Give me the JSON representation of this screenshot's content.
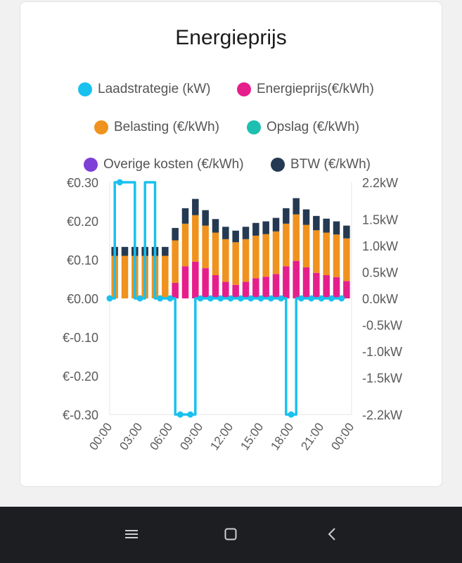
{
  "colors": {
    "laadstrategie": "#19c1ef",
    "energieprijs": "#e61e8c",
    "belasting": "#f0921e",
    "opslag": "#1dbfb0",
    "overige": "#7e3fd6",
    "btw": "#243a52"
  },
  "chart_data": {
    "type": "bar",
    "title": "Energieprijs",
    "legend": [
      {
        "key": "laadstrategie",
        "label": "Laadstrategie (kW)"
      },
      {
        "key": "energieprijs",
        "label": "Energieprijs(€/kWh)"
      },
      {
        "key": "belasting",
        "label": "Belasting (€/kWh)"
      },
      {
        "key": "opslag",
        "label": "Opslag (€/kWh)"
      },
      {
        "key": "overige",
        "label": "Overige kosten (€/kWh)"
      },
      {
        "key": "btw",
        "label": "BTW (€/kWh)"
      }
    ],
    "hours": [
      0,
      1,
      2,
      3,
      4,
      5,
      6,
      7,
      8,
      9,
      10,
      11,
      12,
      13,
      14,
      15,
      16,
      17,
      18,
      19,
      20,
      21,
      22,
      23
    ],
    "series": [
      {
        "name": "Energieprijs(€/kWh)",
        "key": "energieprijs",
        "values": [
          0,
          0,
          0,
          0,
          0,
          0,
          0.04,
          0.083,
          0.095,
          0.078,
          0.06,
          0.043,
          0.035,
          0.043,
          0.052,
          0.056,
          0.063,
          0.083,
          0.097,
          0.08,
          0.066,
          0.06,
          0.055,
          0.045
        ]
      },
      {
        "name": "Belasting (€/kWh)",
        "key": "belasting",
        "values": [
          0.11,
          0.11,
          0.11,
          0.11,
          0.11,
          0.11,
          0.11,
          0.11,
          0.12,
          0.11,
          0.11,
          0.11,
          0.11,
          0.11,
          0.11,
          0.11,
          0.11,
          0.11,
          0.12,
          0.11,
          0.11,
          0.11,
          0.11,
          0.11
        ]
      },
      {
        "name": "Opslag (€/kWh)",
        "key": "opslag",
        "values": [
          0,
          0,
          0,
          0,
          0,
          0,
          0,
          0,
          0,
          0,
          0,
          0,
          0,
          0,
          0,
          0,
          0,
          0,
          0,
          0,
          0,
          0,
          0,
          0
        ]
      },
      {
        "name": "Overige kosten (€/kWh)",
        "key": "overige",
        "values": [
          0,
          0,
          0,
          0,
          0,
          0,
          0,
          0,
          0,
          0,
          0,
          0,
          0,
          0,
          0,
          0,
          0,
          0,
          0,
          0,
          0,
          0,
          0,
          0
        ]
      },
      {
        "name": "BTW (€/kWh)",
        "key": "btw",
        "values": [
          0.023,
          0.023,
          0.023,
          0.023,
          0.023,
          0.023,
          0.032,
          0.04,
          0.042,
          0.04,
          0.035,
          0.032,
          0.03,
          0.032,
          0.033,
          0.033,
          0.035,
          0.04,
          0.042,
          0.04,
          0.037,
          0.036,
          0.034,
          0.033
        ]
      }
    ],
    "laadstrategie": {
      "name": "Laadstrategie (kW)",
      "points": [
        [
          0,
          0
        ],
        [
          0.5,
          0
        ],
        [
          0.5,
          2.2
        ],
        [
          1,
          2.2
        ],
        [
          1.5,
          2.2
        ],
        [
          2.5,
          2.2
        ],
        [
          2.5,
          0
        ],
        [
          3,
          0
        ],
        [
          3.5,
          0
        ],
        [
          3.5,
          2.2
        ],
        [
          4.5,
          2.2
        ],
        [
          4.5,
          0
        ],
        [
          5,
          0
        ],
        [
          6,
          0
        ],
        [
          6.5,
          0
        ],
        [
          6.5,
          -2.2
        ],
        [
          7,
          -2.2
        ],
        [
          8,
          -2.2
        ],
        [
          8.5,
          -2.2
        ],
        [
          8.5,
          0
        ],
        [
          9,
          0
        ],
        [
          10,
          0
        ],
        [
          11,
          0
        ],
        [
          12,
          0
        ],
        [
          13,
          0
        ],
        [
          14,
          0
        ],
        [
          15,
          0
        ],
        [
          16,
          0
        ],
        [
          17,
          0
        ],
        [
          17.5,
          0
        ],
        [
          17.5,
          -2.2
        ],
        [
          18,
          -2.2
        ],
        [
          18.5,
          -2.2
        ],
        [
          18.5,
          0
        ],
        [
          19,
          0
        ],
        [
          20,
          0
        ],
        [
          21,
          0
        ],
        [
          22,
          0
        ],
        [
          23,
          0
        ]
      ]
    },
    "left_axis": {
      "min": -0.3,
      "max": 0.3,
      "ticks": [
        {
          "v": 0.3,
          "label": "€0.30"
        },
        {
          "v": 0.2,
          "label": "€0.20"
        },
        {
          "v": 0.1,
          "label": "€0.10"
        },
        {
          "v": 0,
          "label": "€0.00"
        },
        {
          "v": -0.1,
          "label": "€-0.10"
        },
        {
          "v": -0.2,
          "label": "€-0.20"
        },
        {
          "v": -0.3,
          "label": "€-0.30"
        }
      ]
    },
    "right_axis": {
      "min": -2.2,
      "max": 2.2,
      "ticks": [
        {
          "v": 2.2,
          "label": "2.2kW"
        },
        {
          "v": 1.5,
          "label": "1.5kW"
        },
        {
          "v": 1.0,
          "label": "1.0kW"
        },
        {
          "v": 0.5,
          "label": "0.5kW"
        },
        {
          "v": 0,
          "label": "0.0kW"
        },
        {
          "v": -0.5,
          "label": "-0.5kW"
        },
        {
          "v": -1.0,
          "label": "-1.0kW"
        },
        {
          "v": -1.5,
          "label": "-1.5kW"
        },
        {
          "v": -2.2,
          "label": "-2.2kW"
        }
      ]
    },
    "x_ticks": [
      {
        "h": 0,
        "label": "00:00"
      },
      {
        "h": 3,
        "label": "03:00"
      },
      {
        "h": 6,
        "label": "06:00"
      },
      {
        "h": 9,
        "label": "09:00"
      },
      {
        "h": 12,
        "label": "12:00"
      },
      {
        "h": 15,
        "label": "15:00"
      },
      {
        "h": 18,
        "label": "18:00"
      },
      {
        "h": 21,
        "label": "21:00"
      },
      {
        "h": 24,
        "label": "00:00"
      }
    ]
  }
}
